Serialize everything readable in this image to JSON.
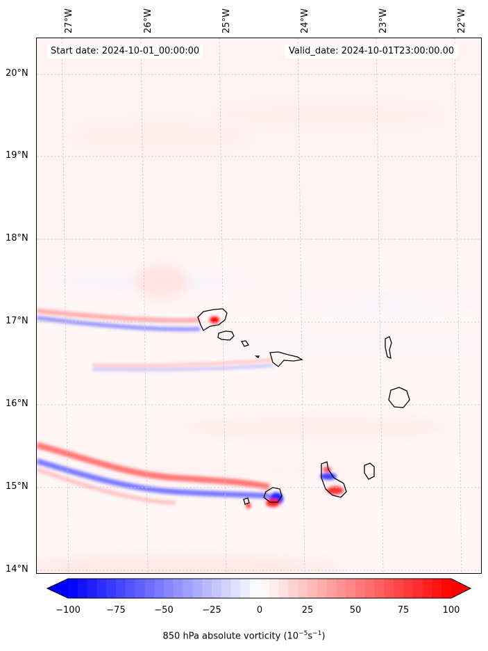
{
  "header": {
    "start_date": "Start date: 2024-10-01_00:00:00",
    "valid_date": "Valid_date: 2024-10-01T23:00:00.00"
  },
  "axes": {
    "longitude_labels": [
      "27°W",
      "26°W",
      "25°W",
      "24°W",
      "23°W",
      "22°W"
    ],
    "latitude_labels": [
      "20°N",
      "19°N",
      "18°N",
      "17°N",
      "16°N",
      "15°N",
      "14°N"
    ],
    "lon_range": [
      -27.35,
      -21.8
    ],
    "lat_range": [
      13.95,
      20.45
    ],
    "gridlines": true
  },
  "colorbar": {
    "ticks": [
      "−100",
      "−75",
      "−50",
      "−25",
      "0",
      "25",
      "50",
      "75",
      "100"
    ],
    "range": [
      -100,
      100
    ],
    "label_main": "850 hPa absolute vorticity (10",
    "label_exp1": "−5",
    "label_mid": "s",
    "label_exp2": "−1",
    "label_end": ")",
    "colormap": "bwr",
    "min_color": "#0000ff",
    "mid_color": "#ffffff",
    "max_color": "#ff0000"
  },
  "map": {
    "region": "Cape Verde Islands",
    "coastline_color": "#000000"
  }
}
